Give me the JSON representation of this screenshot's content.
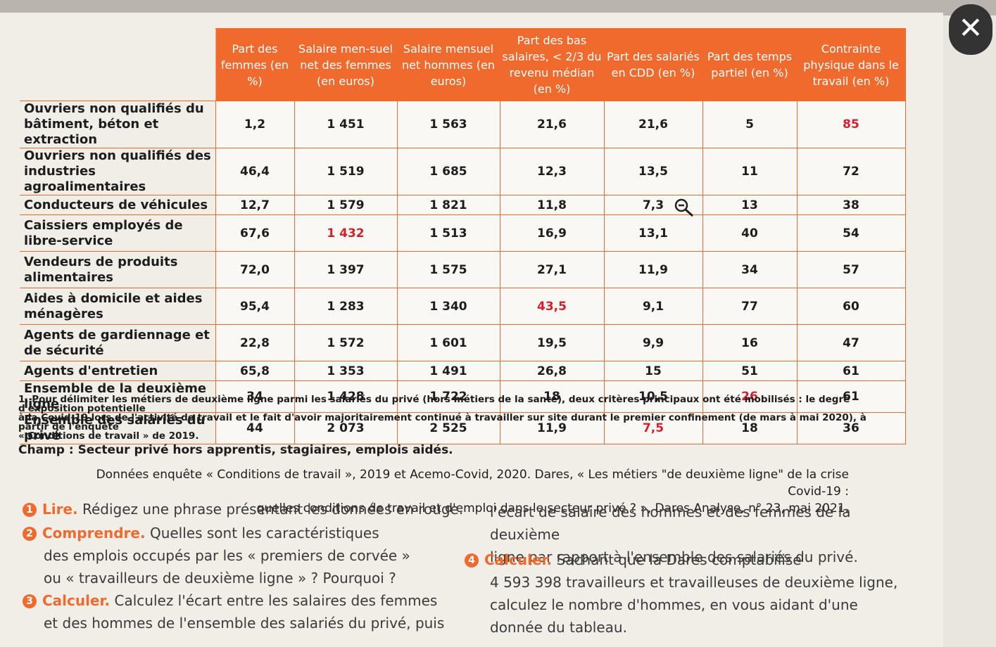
{
  "table": {
    "headers": [
      "Part des femmes (en %)",
      "Salaire men-suel net des femmes (en euros)",
      "Salaire mensuel net hommes (en euros)",
      "Part des bas salaires, < 2/3 du revenu médian (en %)",
      "Part des salariés en CDD (en %)",
      "Part des temps partiel (en %)",
      "Contrainte physique dans le travail (en %)"
    ],
    "rows": [
      {
        "label": "Ouvriers non qualifiés du bâtiment, béton et extraction",
        "cells": [
          "1,2",
          "1 451",
          "1 563",
          "21,6",
          "21,6",
          "5",
          "85"
        ]
      },
      {
        "label": "Ouvriers non qualifiés des industries agroalimentaires",
        "cells": [
          "46,4",
          "1 519",
          "1 685",
          "12,3",
          "13,5",
          "11",
          "72"
        ]
      },
      {
        "label": "Conducteurs de véhicules",
        "cells": [
          "12,7",
          "1 579",
          "1 821",
          "11,8",
          "7,3",
          "13",
          "38"
        ]
      },
      {
        "label": "Caissiers employés de libre-service",
        "cells": [
          "67,6",
          "1 432",
          "1 513",
          "16,9",
          "13,1",
          "40",
          "54"
        ]
      },
      {
        "label": "Vendeurs de produits alimentaires",
        "cells": [
          "72,0",
          "1 397",
          "1 575",
          "27,1",
          "11,9",
          "34",
          "57"
        ]
      },
      {
        "label": "Aides à domicile et aides ménagères",
        "cells": [
          "95,4",
          "1 283",
          "1 340",
          "43,5",
          "9,1",
          "77",
          "60"
        ]
      },
      {
        "label": "Agents de gardiennage et de sécurité",
        "cells": [
          "22,8",
          "1 572",
          "1 601",
          "19,5",
          "9,9",
          "16",
          "47"
        ]
      },
      {
        "label": "Agents d'entretien",
        "cells": [
          "65,8",
          "1 353",
          "1 491",
          "26,8",
          "15",
          "51",
          "61"
        ]
      },
      {
        "label": "Ensemble de la deuxième ligne",
        "cells": [
          "34",
          "1 428",
          "1 722",
          "18",
          "10,5",
          "26",
          "61"
        ]
      },
      {
        "label": "Ensemble des salariés du privé",
        "cells": [
          "44",
          "2 073",
          "2 525",
          "11,9",
          "7,5",
          "18",
          "36"
        ]
      }
    ],
    "red_color": "#d81e2a",
    "accent_color": "#ef6a2c"
  },
  "footnote": {
    "line1": "1. Pour délimiter les métiers de deuxième ligne parmi les salariés du privé (hors métiers de la santé), deux critères principaux ont été mobilisés : le degré d'exposition potentielle",
    "line2": "à la Covid-19 lors de l'activité de travail et le fait d'avoir majoritairement continué à travailler sur site durant le premier confinement (de mars à mai 2020), à partir de l'enquête",
    "line3": "« Conditions de travail » de 2019."
  },
  "champ": "Champ : Secteur privé hors apprentis, stagiaires, emplois aidés.",
  "source": {
    "line1": "Données enquête « Conditions de travail », 2019 et Acemo-Covid, 2020. Dares, « Les métiers \"de deuxième ligne\" de la crise Covid-19 :",
    "line2": "quelles conditions de travail et d'emploi dans le secteur privé ? », Dares Analyse, n° 23, mai 2021."
  },
  "questions": {
    "q1": {
      "num": "1",
      "verb": "Lire.",
      "text": "Rédigez une phrase présentant les données en rouge."
    },
    "q2": {
      "num": "2",
      "verb": "Comprendre.",
      "line1": "Quelles sont les caractéristiques",
      "line2": "des emplois occupés par les « premiers de corvée »",
      "line3": "ou « travailleurs de deuxième ligne » ? Pourquoi ?"
    },
    "q3": {
      "num": "3",
      "verb": "Calculer.",
      "line1": "Calculez l'écart entre les salaires des femmes",
      "line2": "et des hommes de l'ensemble des salariés du privé, puis",
      "line3": "l'écart de salaire des hommes et des femmes de la deuxième",
      "line4": "ligne par rapport à l'ensemble des salariés du privé."
    },
    "q4": {
      "num": "4",
      "verb": "Calculer.",
      "line1": "Sachant que la Dares comptabilise",
      "line2": "4 593 398 travailleurs et travailleuses de deuxième ligne,",
      "line3": "calculez le nombre d'hommes, en vous aidant d'une",
      "line4": "donnée du tableau."
    }
  },
  "close_symbol": "✕"
}
